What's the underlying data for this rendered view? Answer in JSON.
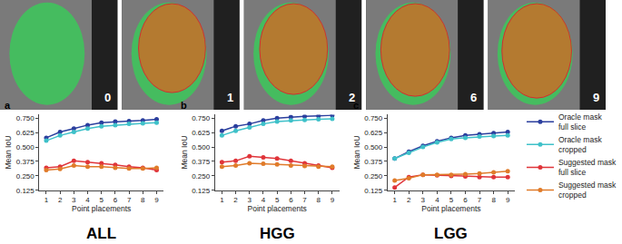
{
  "image_panels": [
    "0",
    "1",
    "2",
    "6",
    "9"
  ],
  "chart_data": [
    {
      "type": "line",
      "title": "ALL",
      "annotations": [
        {
          "text": "a"
        }
      ],
      "x_label": "Point placements",
      "y_label": "Mean IoU",
      "x": [
        1,
        2,
        3,
        4,
        5,
        6,
        7,
        8,
        9
      ],
      "xlim": [
        0.5,
        9.5
      ],
      "xticks": [
        1,
        2,
        3,
        4,
        5,
        6,
        7,
        8,
        9
      ],
      "ylim": [
        0.125,
        0.78
      ],
      "yticks": [
        {
          "value": 0.125,
          "label": "0.125"
        },
        {
          "value": 0.25,
          "label": "0.250"
        },
        {
          "value": 0.375,
          "label": "0.375"
        },
        {
          "value": 0.5,
          "label": "0.500"
        },
        {
          "value": 0.625,
          "label": "0.625"
        },
        {
          "value": 0.75,
          "label": "0.750"
        }
      ],
      "grid": false,
      "marker": "circle",
      "legend": "right",
      "series": [
        {
          "name": "Oracle mask full slice",
          "color": "#2b3f9e",
          "values": [
            0.58,
            0.63,
            0.66,
            0.69,
            0.71,
            0.72,
            0.725,
            0.73,
            0.74
          ]
        },
        {
          "name": "Oracle mask cropped",
          "color": "#3fc1c9",
          "values": [
            0.555,
            0.6,
            0.63,
            0.66,
            0.68,
            0.69,
            0.7,
            0.705,
            0.71
          ]
        },
        {
          "name": "Suggested mask full slice",
          "color": "#e0353a",
          "values": [
            0.32,
            0.33,
            0.38,
            0.37,
            0.36,
            0.345,
            0.33,
            0.32,
            0.3
          ]
        },
        {
          "name": "Suggested mask cropped",
          "color": "#e07b2a",
          "values": [
            0.3,
            0.31,
            0.34,
            0.33,
            0.33,
            0.32,
            0.315,
            0.315,
            0.32
          ]
        }
      ]
    },
    {
      "type": "line",
      "title": "HGG",
      "annotations": [
        {
          "text": "b"
        }
      ],
      "x_label": "Point placements",
      "y_label": "Mean IoU",
      "x": [
        1,
        2,
        3,
        4,
        5,
        6,
        7,
        8,
        9
      ],
      "xlim": [
        0.5,
        9.5
      ],
      "xticks": [
        1,
        2,
        3,
        4,
        5,
        6,
        7,
        8,
        9
      ],
      "ylim": [
        0.125,
        0.78
      ],
      "yticks": [
        {
          "value": 0.125,
          "label": "0.125"
        },
        {
          "value": 0.25,
          "label": "0.250"
        },
        {
          "value": 0.375,
          "label": "0.375"
        },
        {
          "value": 0.5,
          "label": "0.500"
        },
        {
          "value": 0.625,
          "label": "0.625"
        },
        {
          "value": 0.75,
          "label": "0.750"
        }
      ],
      "grid": false,
      "marker": "circle",
      "series": [
        {
          "name": "Oracle mask full slice",
          "color": "#2b3f9e",
          "values": [
            0.64,
            0.68,
            0.7,
            0.73,
            0.75,
            0.76,
            0.765,
            0.77,
            0.775
          ]
        },
        {
          "name": "Oracle mask cropped",
          "color": "#3fc1c9",
          "values": [
            0.6,
            0.64,
            0.67,
            0.7,
            0.72,
            0.73,
            0.735,
            0.74,
            0.745
          ]
        },
        {
          "name": "Suggested mask full slice",
          "color": "#e0353a",
          "values": [
            0.37,
            0.38,
            0.42,
            0.41,
            0.4,
            0.38,
            0.36,
            0.34,
            0.32
          ]
        },
        {
          "name": "Suggested mask cropped",
          "color": "#e07b2a",
          "values": [
            0.33,
            0.34,
            0.36,
            0.355,
            0.35,
            0.34,
            0.335,
            0.33,
            0.33
          ]
        }
      ]
    },
    {
      "type": "line",
      "title": "LGG",
      "annotations": [
        {
          "text": "c"
        }
      ],
      "x_label": "Point placements",
      "y_label": "Mean IoU",
      "x": [
        1,
        2,
        3,
        4,
        5,
        6,
        7,
        8,
        9
      ],
      "xlim": [
        0.5,
        9.5
      ],
      "xticks": [
        1,
        2,
        3,
        4,
        5,
        6,
        7,
        8,
        9
      ],
      "ylim": [
        0.125,
        0.78
      ],
      "yticks": [
        {
          "value": 0.125,
          "label": "0.125"
        },
        {
          "value": 0.25,
          "label": "0.250"
        },
        {
          "value": 0.375,
          "label": "0.375"
        },
        {
          "value": 0.5,
          "label": "0.500"
        },
        {
          "value": 0.625,
          "label": "0.625"
        },
        {
          "value": 0.75,
          "label": "0.750"
        }
      ],
      "grid": false,
      "marker": "circle",
      "series": [
        {
          "name": "Oracle mask full slice",
          "color": "#2b3f9e",
          "values": [
            0.4,
            0.46,
            0.51,
            0.55,
            0.58,
            0.6,
            0.61,
            0.62,
            0.63
          ]
        },
        {
          "name": "Oracle mask cropped",
          "color": "#3fc1c9",
          "values": [
            0.4,
            0.45,
            0.5,
            0.54,
            0.57,
            0.58,
            0.59,
            0.595,
            0.6
          ]
        },
        {
          "name": "Suggested mask full slice",
          "color": "#e0353a",
          "values": [
            0.15,
            0.24,
            0.26,
            0.255,
            0.25,
            0.245,
            0.24,
            0.24,
            0.24
          ]
        },
        {
          "name": "Suggested mask cropped",
          "color": "#e07b2a",
          "values": [
            0.21,
            0.23,
            0.26,
            0.26,
            0.26,
            0.265,
            0.27,
            0.28,
            0.29
          ]
        }
      ]
    }
  ]
}
